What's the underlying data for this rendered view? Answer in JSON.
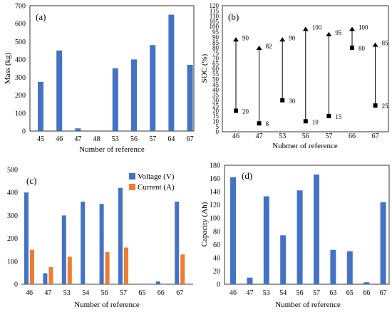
{
  "colors": {
    "blue": "#4472C4",
    "orange": "#ED7D31",
    "axis": "#000000",
    "black": "#000000"
  },
  "chart_data": [
    {
      "panel": "(a)",
      "type": "bar",
      "categories": [
        "45",
        "46",
        "47",
        "48",
        "53",
        "56",
        "57",
        "64",
        "67"
      ],
      "values": [
        275,
        450,
        15,
        0,
        350,
        400,
        480,
        650,
        370
      ],
      "ylabel": "Mass (kg)",
      "xlabel": "Number of reference",
      "ylim": [
        0,
        700
      ],
      "yticks": [
        "0",
        "100",
        "200",
        "300",
        "400",
        "500",
        "600",
        "700"
      ],
      "grid": false
    },
    {
      "panel": "(b)",
      "type": "range",
      "categories": [
        "46",
        "47",
        "53",
        "56",
        "57",
        "66",
        "67"
      ],
      "low": [
        20,
        8,
        30,
        10,
        15,
        80,
        25
      ],
      "high": [
        90,
        82,
        90,
        100,
        95,
        100,
        85
      ],
      "low_labels": [
        "20",
        "8",
        "30",
        "10",
        "15",
        "80",
        "25"
      ],
      "high_labels": [
        "90",
        "82",
        "90",
        "100",
        "95",
        "100",
        "85"
      ],
      "ylabel": "SOC (%)",
      "xlabel": "Nubmer of reference",
      "ylim": [
        0,
        120
      ],
      "yticks": [
        "0",
        "5",
        "10",
        "15",
        "20",
        "25",
        "30",
        "35",
        "40",
        "45",
        "50",
        "55",
        "60",
        "65",
        "70",
        "75",
        "80",
        "85",
        "90",
        "95",
        "100",
        "105",
        "110",
        "115",
        "120"
      ],
      "grid": false
    },
    {
      "panel": "(c)",
      "type": "bar",
      "categories": [
        "46",
        "47",
        "53",
        "54",
        "56",
        "57",
        "65",
        "66",
        "67"
      ],
      "series": [
        {
          "name": "Voltage (V)",
          "color": "#4472C4",
          "values": [
            400,
            48,
            300,
            360,
            350,
            420,
            2,
            12,
            360
          ]
        },
        {
          "name": "Current (A)",
          "color": "#ED7D31",
          "values": [
            150,
            75,
            120,
            0,
            140,
            160,
            0,
            0,
            130
          ]
        }
      ],
      "xlabel": "Number of reference",
      "ylim": [
        0,
        500
      ],
      "yticks": [
        "0",
        "100",
        "200",
        "300",
        "400",
        "500"
      ],
      "legend": "top-right",
      "grid": false
    },
    {
      "panel": "(d)",
      "type": "bar",
      "categories": [
        "46",
        "47",
        "53",
        "54",
        "56",
        "57",
        "63",
        "65",
        "66",
        "67"
      ],
      "values": [
        162,
        10,
        133,
        74,
        142,
        166,
        52,
        50,
        3,
        124
      ],
      "ylabel": "Capacity (Ah)",
      "xlabel": "Number of reference",
      "ylim": [
        0,
        180
      ],
      "yticks": [
        "0",
        "20",
        "40",
        "60",
        "80",
        "100",
        "120",
        "140",
        "160",
        "180"
      ],
      "grid": false
    }
  ]
}
